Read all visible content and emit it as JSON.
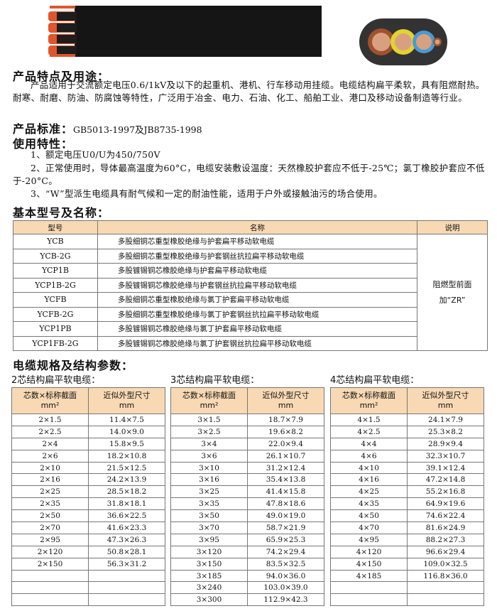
{
  "features": {
    "heading": "产品特点及用途：",
    "text": "产品适用于交流额定电压0.6/1kV及以下的起重机、港机、行车移动用挂缆。电缆结构扁平柔软，具有阻燃耐热。耐寒、耐磨、防油、防腐蚀等特性，广泛用于冶金、电力、石油、化工、船舶工业、港口及移动设备制造等行业。"
  },
  "standard": {
    "heading": "产品标准：",
    "value": "GB5013-1997及JB8735-1998"
  },
  "usage": {
    "heading": "使用特性：",
    "items": [
      "1、额定电压U0/U为450/750V",
      "2、正常使用时，导体最高温度为60°C，电缆安装敷设温度：天然橡胶护套应不低于-25℃；氯丁橡胶护套应不低于-20°C。",
      "3、“W”型派生电缆具有耐气候和一定的耐油性能，适用于户外或接触油污的场合使用。"
    ]
  },
  "models": {
    "heading": "基本型号及名称：",
    "headers": [
      "型号",
      "名称",
      "说明"
    ],
    "note": [
      "阻燃型前面",
      "加“ZR”"
    ],
    "rows": [
      [
        "YCB",
        "多股细铜芯重型橡胶绝缘与护套扁平移动软电缆"
      ],
      [
        "YCB-2G",
        "多股细铜芯重型橡胶绝缘与护套钢丝抗拉扁平移动软电缆"
      ],
      [
        "YCP1B",
        "多股镀锡铜芯橡胶绝缘与护套扁平移动软电缆"
      ],
      [
        "YCP1B-2G",
        "多股镀锡铜芯橡胶绝缘与护套钢丝抗拉扁平移动软电缆"
      ],
      [
        "YCFB",
        "多股细铜芯重型橡胶绝缘与氯丁护套扁平移动软电缆"
      ],
      [
        "YCFB-2G",
        "多股细铜芯重型橡胶绝缘与氯丁护套钢丝抗拉扁平移动软电缆"
      ],
      [
        "YCP1PB",
        "多股镀锡铜芯橡胶绝缘与氯丁护套扁平移动软电缆"
      ],
      [
        "YCP1FB-2G",
        "多股镀锡铜芯橡胶绝缘与氯丁护套钢丝抗拉扁平移动软电缆"
      ]
    ]
  },
  "specs": {
    "heading": "电缆规格及结构参数：",
    "col1": [
      "芯数×标称截面",
      "mm²"
    ],
    "col2": [
      "近似外型尺寸",
      "mm"
    ],
    "tables": [
      {
        "title": "2芯结构扁平软电缆：",
        "rows": [
          [
            "2×1.5",
            "11.4×7.5"
          ],
          [
            "2×2.5",
            "14.0×9.0"
          ],
          [
            "2×4",
            "15.8×9.5"
          ],
          [
            "2×6",
            "18.2×10.8"
          ],
          [
            "2×10",
            "21.5×12.5"
          ],
          [
            "2×16",
            "24.2×13.9"
          ],
          [
            "2×25",
            "28.5×18.2"
          ],
          [
            "2×35",
            "31.8×18.1"
          ],
          [
            "2×50",
            "36.6×22.5"
          ],
          [
            "2×70",
            "41.6×23.3"
          ],
          [
            "2×95",
            "47.3×26.3"
          ],
          [
            "2×120",
            "50.8×28.1"
          ],
          [
            "2×150",
            "56.3×31.2"
          ],
          [
            "",
            ""
          ],
          [
            "",
            ""
          ],
          [
            "",
            ""
          ]
        ]
      },
      {
        "title": "3芯结构扁平软电缆：",
        "rows": [
          [
            "3×1.5",
            "18.7×7.9"
          ],
          [
            "3×2.5",
            "19.6×8.2"
          ],
          [
            "3×4",
            "22.0×9.4"
          ],
          [
            "3×6",
            "26.1×10.7"
          ],
          [
            "3×10",
            "31.2×12.4"
          ],
          [
            "3×16",
            "35.4×13.8"
          ],
          [
            "3×25",
            "41.4×15.8"
          ],
          [
            "3×35",
            "47.8×18.6"
          ],
          [
            "3×50",
            "49.0×19.0"
          ],
          [
            "3×70",
            "58.7×21.9"
          ],
          [
            "3×95",
            "65.9×25.3"
          ],
          [
            "3×120",
            "74.2×29.4"
          ],
          [
            "3×150",
            "83.5×32.5"
          ],
          [
            "3×185",
            "94.0×36.0"
          ],
          [
            "3×240",
            "103.0×39.0"
          ],
          [
            "3×300",
            "112.9×42.3"
          ]
        ]
      },
      {
        "title": "4芯结构扁平软电缆：",
        "rows": [
          [
            "4×1.5",
            "24.1×7.9"
          ],
          [
            "4×2.5",
            "25.3×8.2"
          ],
          [
            "4×4",
            "28.9×9.4"
          ],
          [
            "4×6",
            "32.3×10.7"
          ],
          [
            "4×10",
            "39.1×12.4"
          ],
          [
            "4×16",
            "47.2×14.8"
          ],
          [
            "4×25",
            "55.2×16.8"
          ],
          [
            "4×35",
            "64.9×19.6"
          ],
          [
            "4×50",
            "74.6×22.4"
          ],
          [
            "4×70",
            "81.6×24.9"
          ],
          [
            "4×95",
            "88.2×27.3"
          ],
          [
            "4×120",
            "96.6×29.4"
          ],
          [
            "4×150",
            "109.0×32.5"
          ],
          [
            "4×185",
            "116.8×36.0"
          ],
          [
            "",
            ""
          ],
          [
            "",
            ""
          ]
        ]
      }
    ]
  },
  "colors": {
    "header_bg": "#f8d9b4",
    "cable": "#151515",
    "copper": "#d9663a"
  }
}
